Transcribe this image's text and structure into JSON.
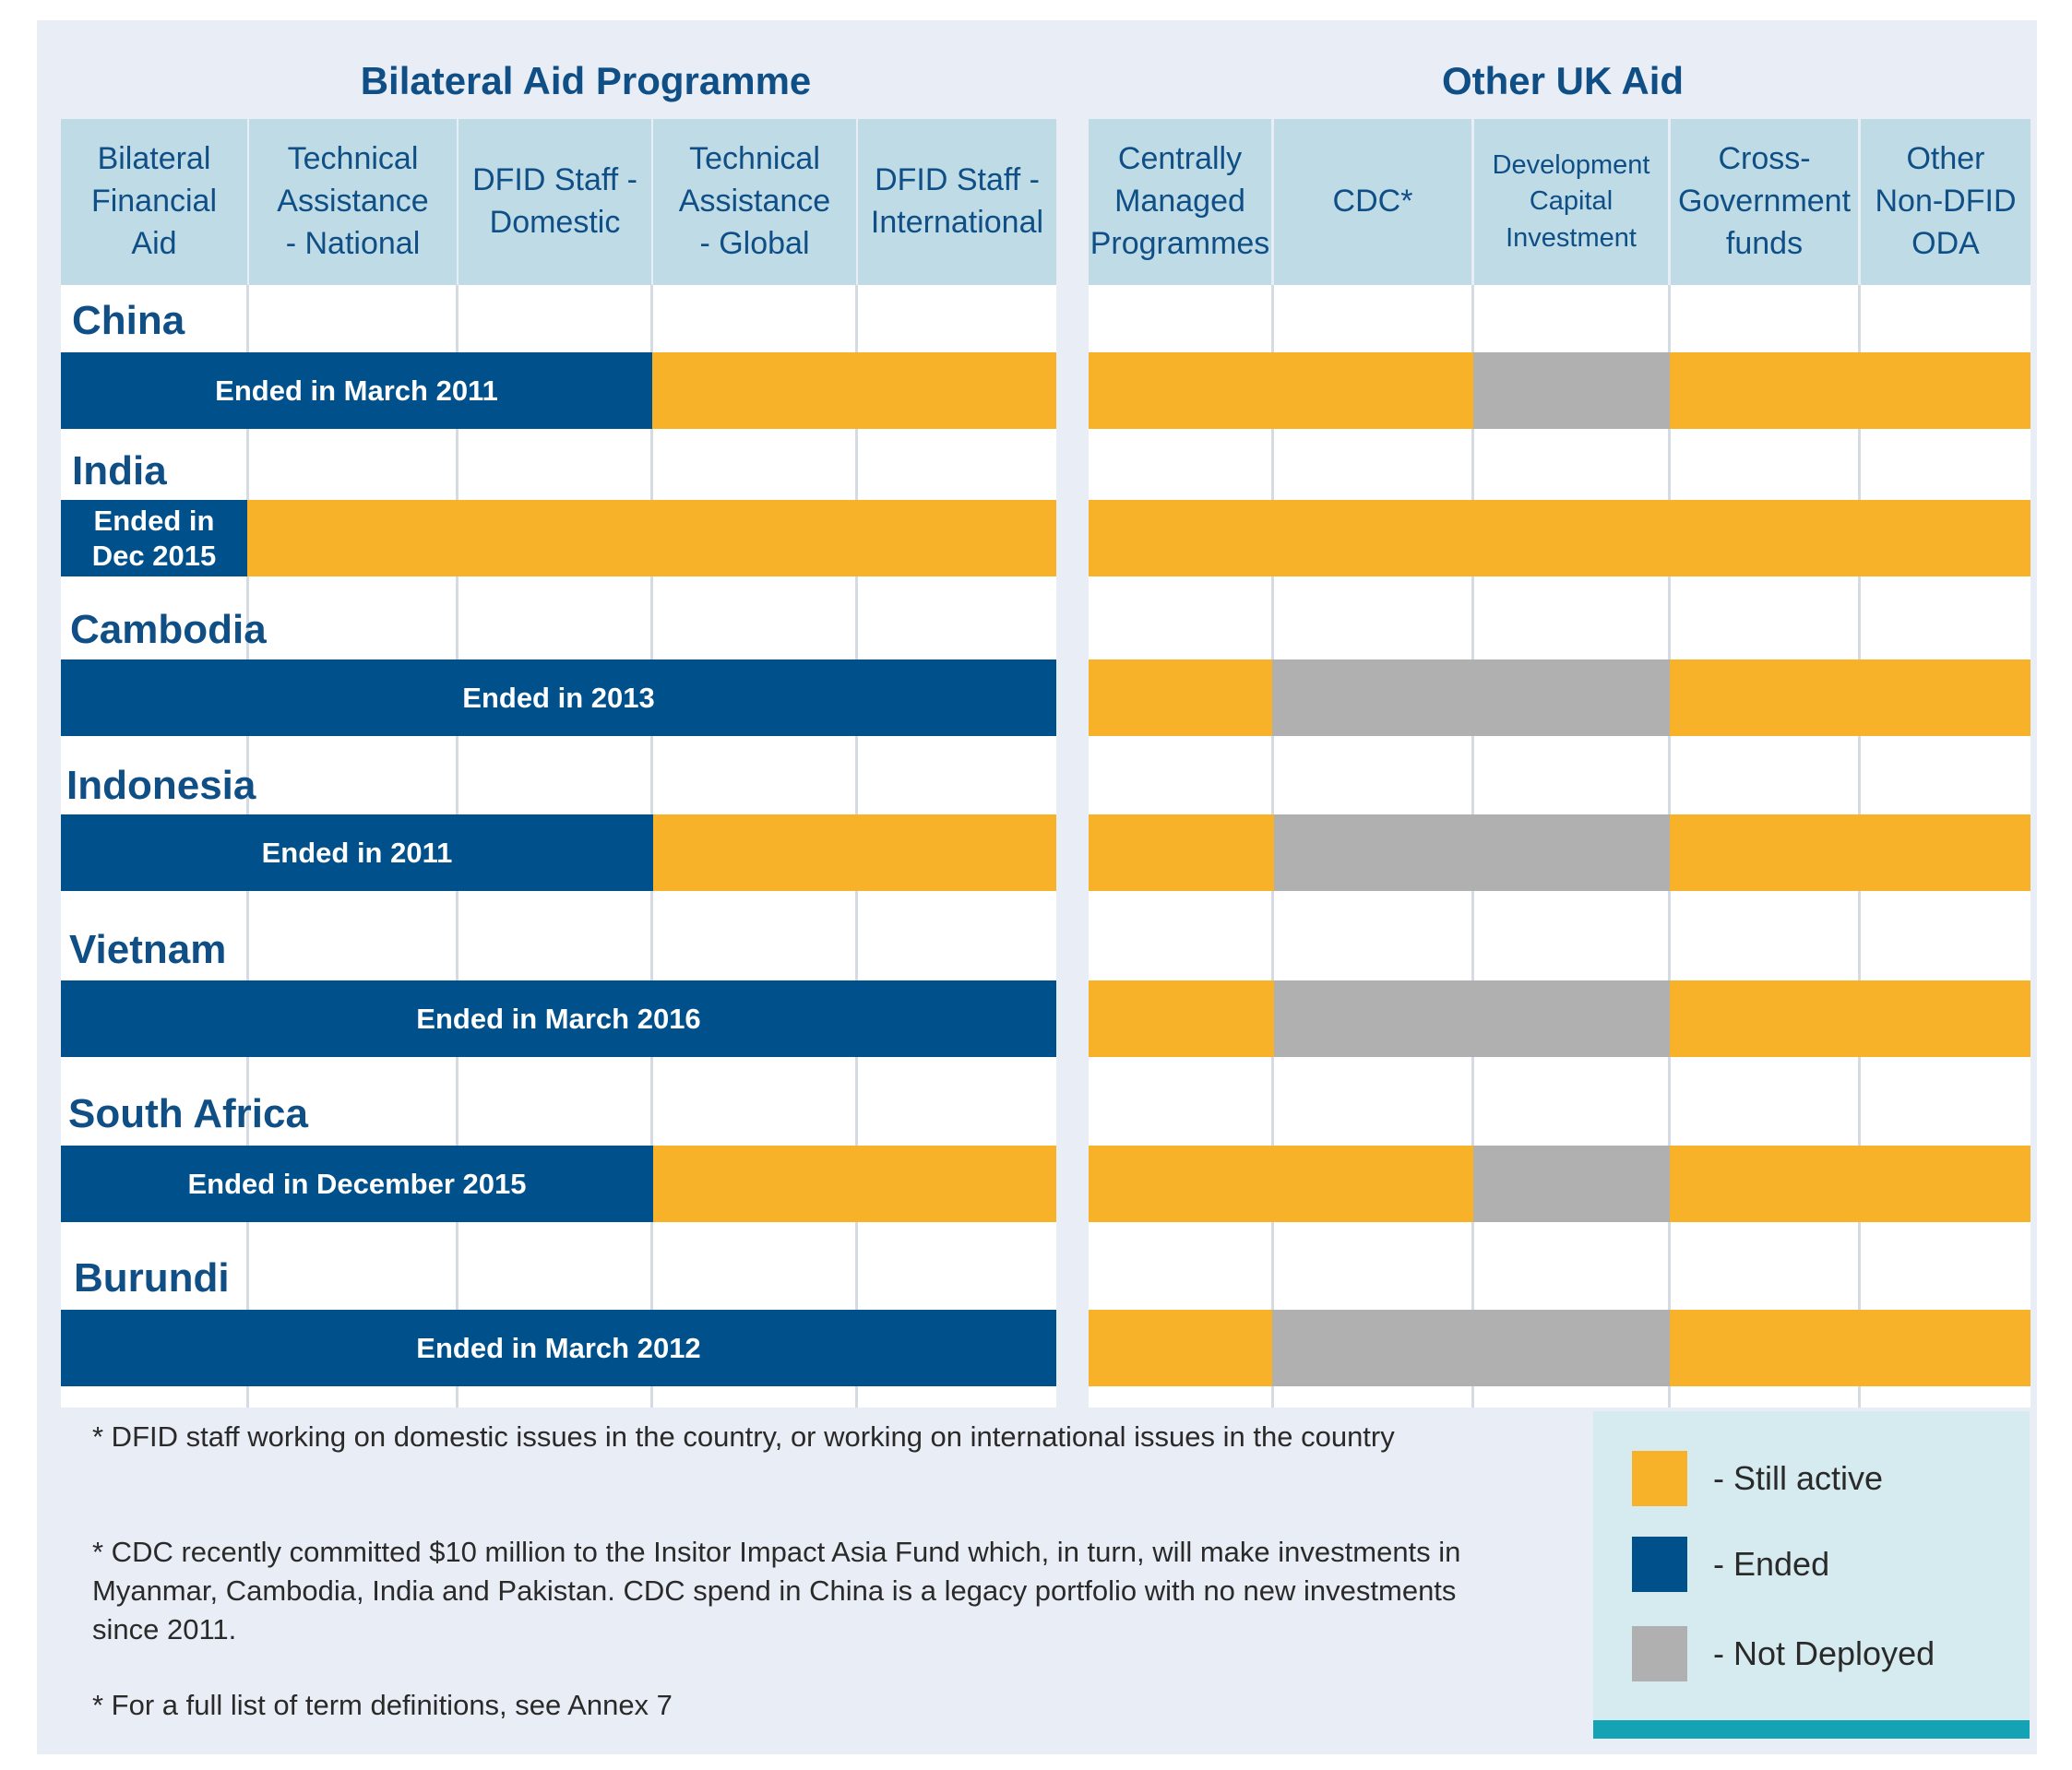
{
  "sections": {
    "bilateral_title": "Bilateral Aid Programme",
    "other_title": "Other UK Aid"
  },
  "columns": {
    "bilateral": [
      "Bilateral\nFinancial\nAid",
      "Technical\nAssistance\n- National",
      "DFID Staff -\nDomestic",
      "Technical\nAssistance\n- Global",
      "DFID Staff -\nInternational"
    ],
    "other": [
      "Centrally\nManaged\nProgrammes",
      "CDC*",
      "Development\nCapital\nInvestment",
      "Cross-\nGovernment\nfunds",
      "Other\nNon-DFID\nODA"
    ]
  },
  "countries": [
    {
      "name": "China",
      "ended_label": "Ended in March 2011"
    },
    {
      "name": "India",
      "ended_label": "Ended in\nDec 2015"
    },
    {
      "name": "Cambodia",
      "ended_label": "Ended in 2013"
    },
    {
      "name": "Indonesia",
      "ended_label": "Ended in 2011"
    },
    {
      "name": "Vietnam",
      "ended_label": "Ended in March 2016"
    },
    {
      "name": "South Africa",
      "ended_label": "Ended in December 2015"
    },
    {
      "name": "Burundi",
      "ended_label": "Ended in March 2012"
    }
  ],
  "status_matrix": {
    "China": {
      "bilateral": [
        "ended",
        "ended",
        "ended",
        "active",
        "active"
      ],
      "other": [
        "active",
        "active",
        "not_deployed",
        "active",
        "active"
      ]
    },
    "India": {
      "bilateral": [
        "ended",
        "active",
        "active",
        "active",
        "active"
      ],
      "other": [
        "active",
        "active",
        "active",
        "active",
        "active"
      ]
    },
    "Cambodia": {
      "bilateral": [
        "ended",
        "ended",
        "ended",
        "ended",
        "ended"
      ],
      "other": [
        "active",
        "not_deployed",
        "not_deployed",
        "active",
        "active"
      ]
    },
    "Indonesia": {
      "bilateral": [
        "ended",
        "ended",
        "ended",
        "active",
        "active"
      ],
      "other": [
        "active",
        "not_deployed",
        "not_deployed",
        "active",
        "active"
      ]
    },
    "Vietnam": {
      "bilateral": [
        "ended",
        "ended",
        "ended",
        "ended",
        "ended"
      ],
      "other": [
        "active",
        "not_deployed",
        "not_deployed",
        "active",
        "active"
      ]
    },
    "South Africa": {
      "bilateral": [
        "ended",
        "ended",
        "ended",
        "active",
        "active"
      ],
      "other": [
        "active",
        "active",
        "not_deployed",
        "active",
        "active"
      ]
    },
    "Burundi": {
      "bilateral": [
        "ended",
        "ended",
        "ended",
        "ended",
        "ended"
      ],
      "other": [
        "active",
        "not_deployed",
        "not_deployed",
        "active",
        "active"
      ]
    }
  },
  "footnotes": [
    "* DFID staff working on domestic issues in the country, or working on international issues in the country",
    "* CDC recently committed $10 million to the Insitor Impact Asia Fund which, in turn, will make investments in Myanmar, Cambodia, India and Pakistan. CDC spend in China is a legacy portfolio with no new investments since 2011.",
    "* For a full list of term definitions, see Annex 7"
  ],
  "legend": {
    "active": "- Still active",
    "ended": "- Ended",
    "not_deployed": "- Not Deployed"
  },
  "colors": {
    "active": "#f8b22a",
    "ended": "#00508b",
    "not_deployed": "#b0b0b0",
    "header_bg": "#bedbe6",
    "title": "#0f4f86"
  }
}
